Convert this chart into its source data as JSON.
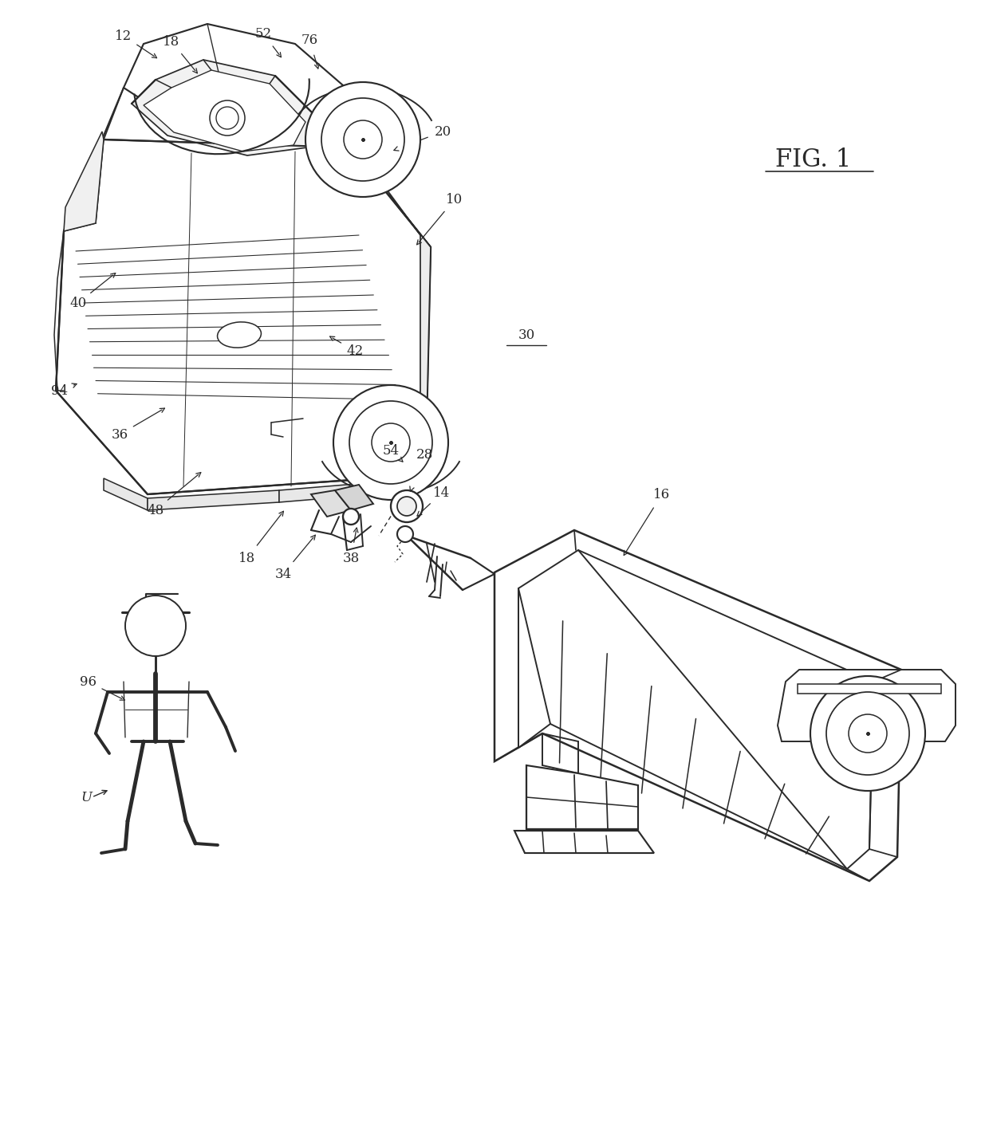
{
  "fig_width": 12.4,
  "fig_height": 14.4,
  "dpi": 100,
  "bg_color": "#ffffff",
  "line_color": "#2a2a2a",
  "line_width": 1.4,
  "fig_label": "FIG. 1",
  "fig_label_fontsize": 20,
  "label_fontsize": 12,
  "truck_color": "white",
  "trailer_color": "white"
}
